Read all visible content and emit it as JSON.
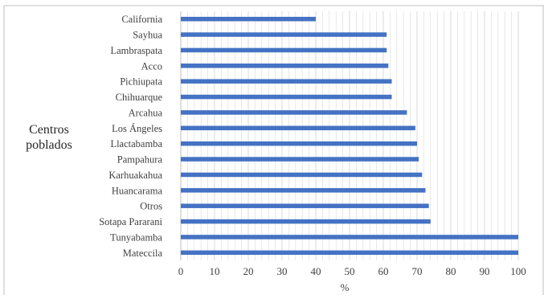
{
  "chart_data": {
    "type": "bar",
    "orientation": "horizontal",
    "categories": [
      "California",
      "Sayhua",
      "Lambraspata",
      "Acco",
      "Pichiupata",
      "Chihuarque",
      "Arcahua",
      "Los Ángeles",
      "Llactabamba",
      "Pampahura",
      "Karhuakahua",
      "Huancarama",
      "Otros",
      "Sotapa Pararani",
      "Tunyabamba",
      "Mateccila"
    ],
    "values": [
      40,
      61,
      61,
      61.5,
      62.5,
      62.5,
      67,
      69.5,
      70,
      70.5,
      71.5,
      72.5,
      73.5,
      74,
      100,
      100
    ],
    "title": "",
    "xlabel": "%",
    "ylabel_lines": [
      "Centros",
      "poblados"
    ],
    "xlim": [
      0,
      100
    ],
    "xticks": [
      0,
      10,
      20,
      30,
      40,
      50,
      60,
      70,
      80,
      90,
      100
    ],
    "grid": "vertical minor lines",
    "bar_color": "#4472C4",
    "grid_color": "#D9D9D9",
    "axis_color": "#BFBFBF"
  }
}
